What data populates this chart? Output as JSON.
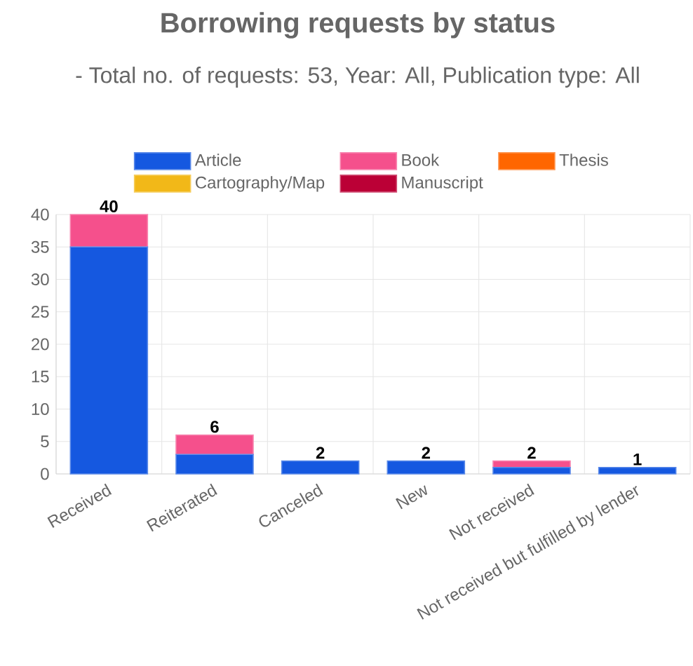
{
  "chart_data": {
    "type": "bar",
    "title": "Borrowing requests by status",
    "subtitle": "- Total no. of requests: 53, Year: All, Publication type: All",
    "categories": [
      "Received",
      "Reiterated",
      "Canceled",
      "New",
      "Not received",
      "Not received but fulfilled by lender"
    ],
    "stacked": true,
    "series": [
      {
        "name": "Article",
        "color": "#1558e0",
        "values": [
          35,
          3,
          2,
          2,
          1,
          1
        ]
      },
      {
        "name": "Book",
        "color": "#f5508c",
        "values": [
          5,
          3,
          0,
          0,
          1,
          0
        ]
      },
      {
        "name": "Thesis",
        "color": "#ff6600",
        "values": [
          0,
          0,
          0,
          0,
          0,
          0
        ]
      },
      {
        "name": "Cartography/Map",
        "color": "#f2b818",
        "values": [
          0,
          0,
          0,
          0,
          0,
          0
        ]
      },
      {
        "name": "Manuscript",
        "color": "#bb0036",
        "values": [
          0,
          0,
          0,
          0,
          0,
          0
        ]
      }
    ],
    "totals": [
      "40",
      "6",
      "2",
      "2",
      "2",
      "1"
    ],
    "ylim": [
      0,
      40
    ],
    "yticks": [
      0,
      5,
      10,
      15,
      20,
      25,
      30,
      35,
      40
    ],
    "grid": true,
    "legend": "top"
  }
}
